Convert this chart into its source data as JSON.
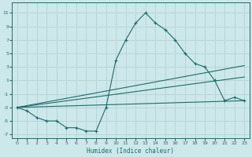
{
  "xlabel": "Humidex (Indice chaleur)",
  "ylabel": "",
  "background_color": "#cde8ea",
  "grid_color": "#b8d4d6",
  "line_color": "#1e6b6b",
  "xlim": [
    -0.5,
    23.5
  ],
  "ylim": [
    -7.5,
    12.5
  ],
  "xticks": [
    0,
    1,
    2,
    3,
    4,
    5,
    6,
    7,
    8,
    9,
    10,
    11,
    12,
    13,
    14,
    15,
    16,
    17,
    18,
    19,
    20,
    21,
    22,
    23
  ],
  "yticks": [
    -7,
    -5,
    -3,
    -1,
    1,
    3,
    5,
    7,
    9,
    11
  ],
  "main_series": {
    "x": [
      0,
      1,
      2,
      3,
      4,
      5,
      6,
      7,
      8,
      9,
      10,
      11,
      12,
      13,
      14,
      15,
      16,
      17,
      18,
      19,
      20,
      21,
      22,
      23
    ],
    "y": [
      -3,
      -3.5,
      -4.5,
      -5,
      -5,
      -6,
      -6,
      -6.5,
      -6.5,
      -3,
      4,
      7,
      9.5,
      11,
      9.5,
      8.5,
      7,
      5,
      3.5,
      3,
      1,
      -2,
      -1.5,
      -2
    ]
  },
  "regression_lines": [
    {
      "x": [
        0,
        23
      ],
      "y": [
        -3,
        -2
      ]
    },
    {
      "x": [
        0,
        23
      ],
      "y": [
        -3,
        1.5
      ]
    },
    {
      "x": [
        0,
        23
      ],
      "y": [
        -3,
        3.2
      ]
    }
  ]
}
